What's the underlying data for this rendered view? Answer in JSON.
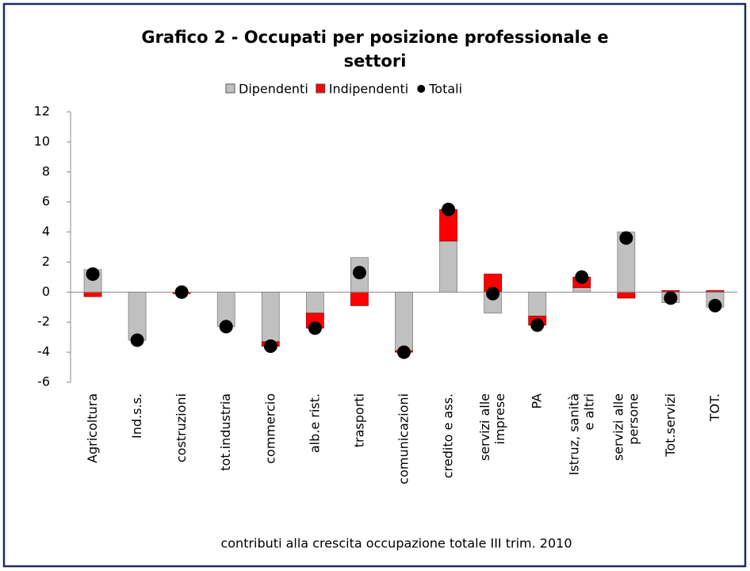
{
  "chart_data": {
    "type": "stacked_bar_dot",
    "title": "Grafico 2 - Occupati per posizione professionale e settori",
    "x_label": "contributi alla crescita occupazione totale III trim. 2010",
    "categories": [
      "Agricoltura",
      "Ind.s.s.",
      "costruzioni",
      "tot.industria",
      "commercio",
      "alb.e rist.",
      "trasporti",
      "comunicazioni",
      "credito e ass.",
      "servizi alle imprese",
      "PA",
      "Istruz, sanità e altri",
      "servizi alle persone",
      "Tot.servizi",
      "TOT."
    ],
    "series": [
      {
        "name": "Dipendenti",
        "color": "#c0c0c0",
        "kind": "bar",
        "values": [
          1.5,
          -3.2,
          0.0,
          -2.3,
          -3.3,
          -1.4,
          2.3,
          -3.9,
          3.4,
          -1.4,
          -1.6,
          0.3,
          4.0,
          -0.7,
          -1.0
        ]
      },
      {
        "name": "Indipendenti",
        "color": "#ff0000",
        "kind": "bar",
        "values": [
          -0.3,
          0.0,
          -0.1,
          0.0,
          -0.3,
          -1.0,
          -0.9,
          -0.1,
          2.1,
          1.2,
          -0.6,
          0.7,
          -0.4,
          0.1,
          0.1
        ]
      },
      {
        "name": "Totali",
        "color": "#000000",
        "kind": "dot",
        "values": [
          1.2,
          -3.2,
          0.0,
          -2.3,
          -3.6,
          -2.4,
          1.3,
          -4.0,
          5.5,
          -0.1,
          -2.2,
          1.0,
          3.6,
          -0.4,
          -0.9
        ]
      }
    ],
    "ylim": [
      -6,
      12
    ],
    "yticks": [
      -6,
      -4,
      -2,
      0,
      2,
      4,
      6,
      8,
      10,
      12
    ],
    "grid": false,
    "legend": "top"
  }
}
